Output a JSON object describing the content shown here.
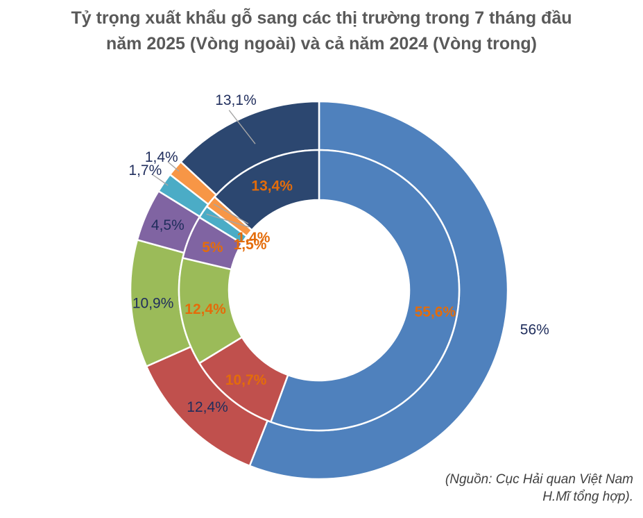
{
  "chart_data": {
    "type": "donut",
    "title_line1": "Tỷ trọng xuất khẩu gỗ sang các thị trường trong 7 tháng đầu",
    "title_line2": "năm 2025 (Vòng ngoài) và cả năm 2024 (Vòng trong)",
    "colors": [
      "#4f81bd",
      "#c0504d",
      "#9bbb59",
      "#8064a2",
      "#4bacc6",
      "#f79646",
      "#2c4770"
    ],
    "outer": {
      "values": [
        56,
        12.4,
        10.9,
        4.5,
        1.7,
        1.4,
        13.1
      ],
      "labels": [
        "56%",
        "12,4%",
        "10,9%",
        "4,5%",
        "1,7%",
        "1,4%",
        "13,1%"
      ],
      "label_color": "#1f2d5c"
    },
    "inner": {
      "values": [
        55.6,
        10.7,
        12.4,
        5,
        1.5,
        1.4,
        13.4
      ],
      "labels": [
        "55,6%",
        "10,7%",
        "12,4%",
        "5%",
        "1,5%",
        "1,4%",
        "13,4%"
      ],
      "label_color": "#e46c0a"
    }
  },
  "source": {
    "line1": "(Nguồn: Cục Hải quan Việt Nam",
    "line2": "H.Mĩ tổng hợp)."
  }
}
